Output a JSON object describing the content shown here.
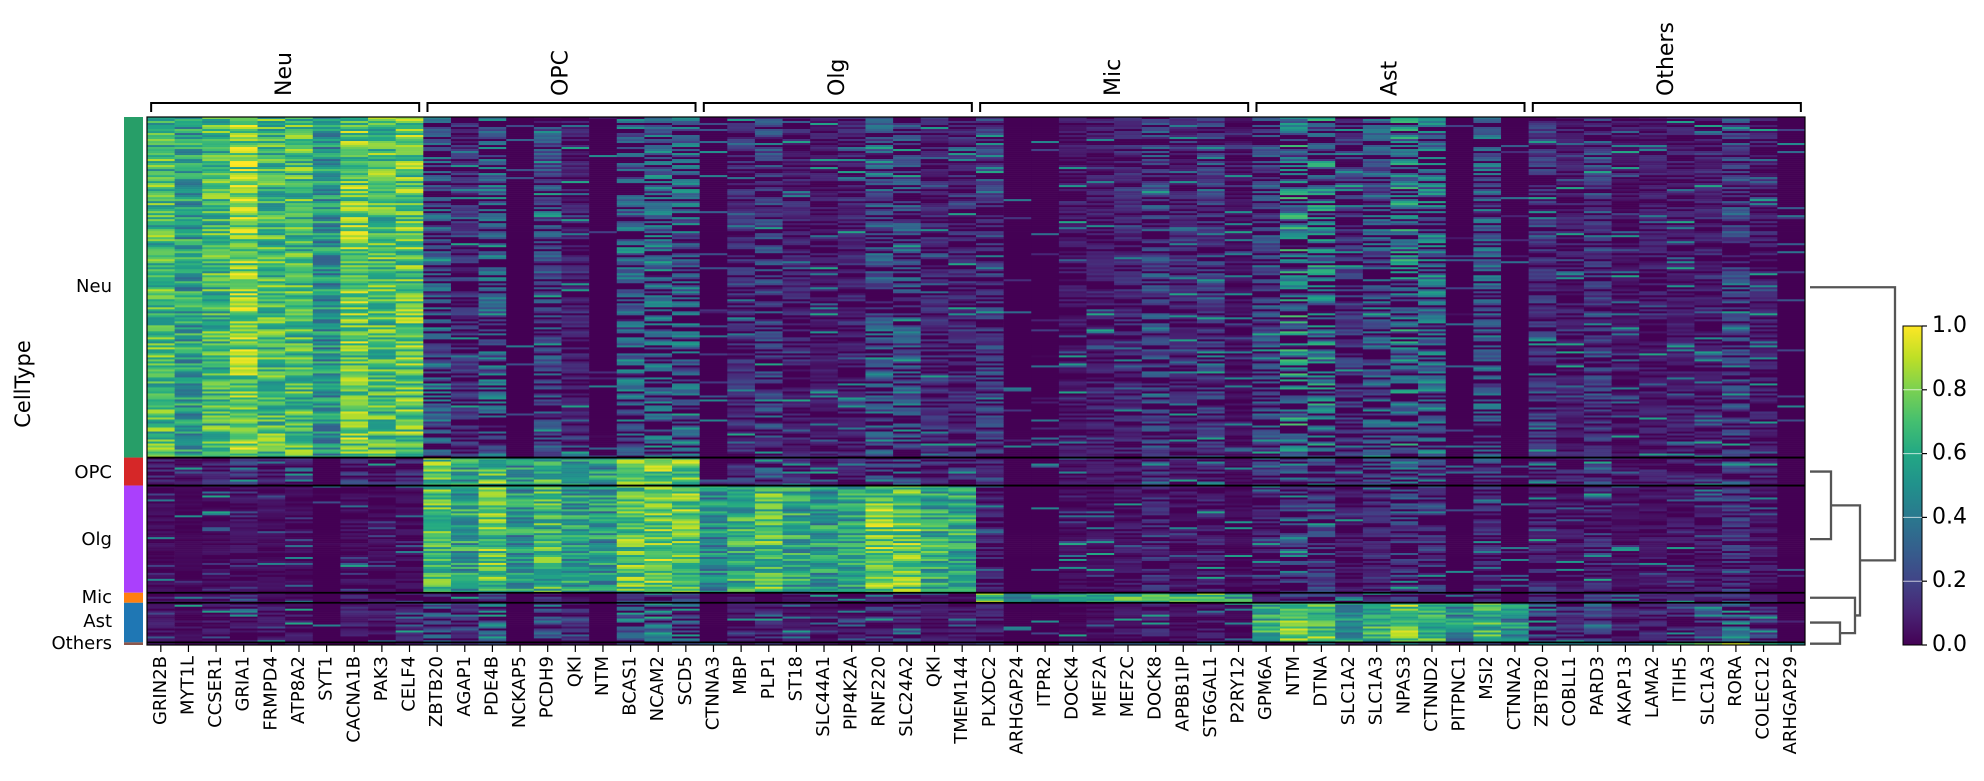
{
  "chart_data": {
    "type": "heatmap",
    "title": "",
    "ylabel": "CellType",
    "xlabel": "",
    "colormap": "viridis",
    "colorbar": {
      "range": [
        0.0,
        1.0
      ],
      "ticks": [
        "0.0",
        "0.2",
        "0.4",
        "0.6",
        "0.8",
        "1.0"
      ]
    },
    "var_groups": [
      {
        "label": "Neu",
        "genes": [
          "GRIN2B",
          "MYT1L",
          "CCSER1",
          "GRIA1",
          "FRMPD4",
          "ATP8A2",
          "SYT1",
          "CACNA1B",
          "PAK3",
          "CELF4"
        ]
      },
      {
        "label": "OPC",
        "genes": [
          "ZBTB20",
          "AGAP1",
          "PDE4B",
          "NCKAP5",
          "PCDH9",
          "QKI",
          "NTM",
          "BCAS1",
          "NCAM2",
          "SCD5"
        ]
      },
      {
        "label": "Olg",
        "genes": [
          "CTNNA3",
          "MBP",
          "PLP1",
          "ST18",
          "SLC44A1",
          "PIP4K2A",
          "RNF220",
          "SLC24A2",
          "QKI",
          "TMEM144"
        ]
      },
      {
        "label": "Mic",
        "genes": [
          "PLXDC2",
          "ARHGAP24",
          "ITPR2",
          "DOCK4",
          "MEF2A",
          "MEF2C",
          "DOCK8",
          "APBB1IP",
          "ST6GAL1",
          "P2RY12"
        ]
      },
      {
        "label": "Ast",
        "genes": [
          "GPM6A",
          "NTM",
          "DTNA",
          "SLC1A2",
          "SLC1A3",
          "NPAS3",
          "CTNND2",
          "PITPNC1",
          "MSI2",
          "CTNNA2"
        ]
      },
      {
        "label": "Others",
        "genes": [
          "ZBTB20",
          "COBLL1",
          "PARD3",
          "AKAP13",
          "LAMA2",
          "ITIH5",
          "SLC1A3",
          "RORA",
          "COLEC12",
          "ARHGAP29"
        ]
      }
    ],
    "cell_types": [
      {
        "label": "Neu",
        "color": "#279e68",
        "fraction": 0.645,
        "high_groups": [
          "Neu"
        ],
        "secondary": {
          "OPC": 0.35,
          "Olg": 0.25,
          "Mic": 0.2,
          "Ast": 0.45,
          "Others": 0.2
        }
      },
      {
        "label": "OPC",
        "color": "#d62728",
        "fraction": 0.053,
        "high_groups": [
          "OPC"
        ],
        "secondary": {
          "Neu": 0.15,
          "Olg": 0.3,
          "Mic": 0.15,
          "Ast": 0.35,
          "Others": 0.25
        }
      },
      {
        "label": "Olg",
        "color": "#aa40fc",
        "fraction": 0.203,
        "high_groups": [
          "Olg",
          "OPC"
        ],
        "secondary": {
          "Neu": 0.05,
          "Mic": 0.12,
          "Ast": 0.2,
          "Others": 0.15
        }
      },
      {
        "label": "Mic",
        "color": "#ff7f0e",
        "fraction": 0.019,
        "high_groups": [
          "Mic"
        ],
        "secondary": {
          "Neu": 0.1,
          "OPC": 0.2,
          "Olg": 0.1,
          "Ast": 0.2,
          "Others": 0.2
        }
      },
      {
        "label": "Ast",
        "color": "#1f77b4",
        "fraction": 0.075,
        "high_groups": [
          "Ast"
        ],
        "secondary": {
          "Neu": 0.1,
          "OPC": 0.4,
          "Olg": 0.15,
          "Mic": 0.1,
          "Others": 0.35
        }
      },
      {
        "label": "Others",
        "color": "#8c564b",
        "fraction": 0.005,
        "high_groups": [
          "Others"
        ],
        "secondary": {
          "Neu": 0.1,
          "OPC": 0.3,
          "Olg": 0.2,
          "Mic": 0.4,
          "Ast": 0.3
        }
      }
    ],
    "dendrogram": "(Neu,((OPC,Olg),(Mic,(Ast,Others))))"
  }
}
